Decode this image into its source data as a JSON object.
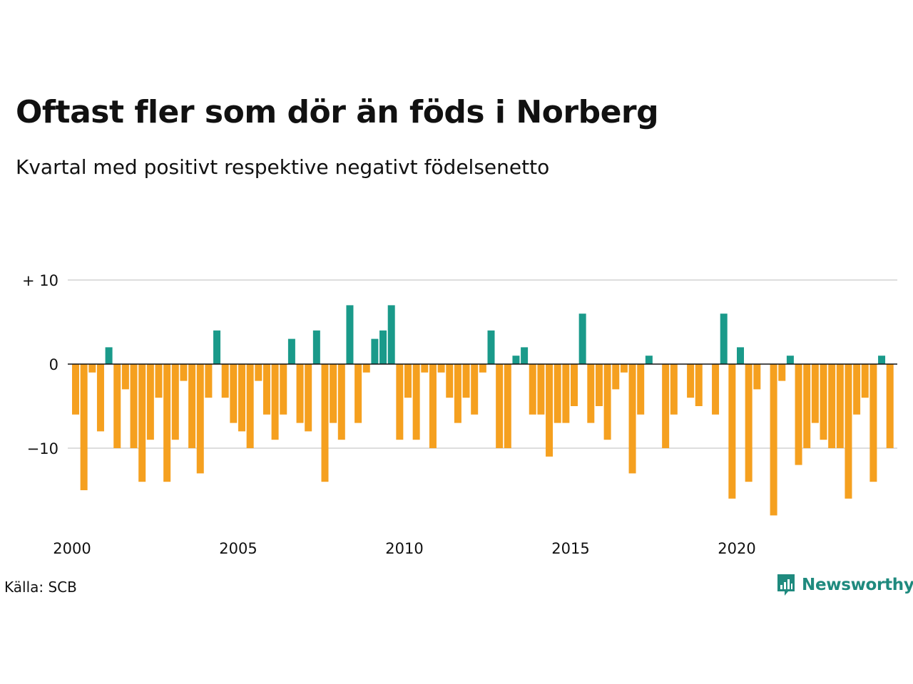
{
  "header": {
    "title": "Oftast fler som dör än föds i Norberg",
    "subtitle": "Kvartal med positivt respektive negativt födelsenetto"
  },
  "footer": {
    "source": "Källa: SCB",
    "brand": "Newsworthy"
  },
  "colors": {
    "positive": "#1a9a8a",
    "negative": "#f5a01f",
    "grid": "#dddddd",
    "zero_line": "#111111",
    "brand": "#1f8a7e"
  },
  "icons": {
    "brand_logo": "newsworthy-logo-icon"
  },
  "chart_data": {
    "type": "bar",
    "title": "Oftast fler som dör än föds i Norberg",
    "subtitle": "Kvartal med positivt respektive negativt födelsenetto",
    "x_start": "2000-Q1",
    "x_ticks": [
      "2000",
      "2005",
      "2010",
      "2015",
      "2020"
    ],
    "y_ticks": [
      {
        "value": 10,
        "label": "+ 10"
      },
      {
        "value": 0,
        "label": "0"
      },
      {
        "value": -10,
        "label": "−10"
      }
    ],
    "ylim": [
      -18,
      10
    ],
    "grid": true,
    "values": [
      -6,
      -15,
      -1,
      -8,
      2,
      -10,
      -3,
      -10,
      -14,
      -9,
      -4,
      -14,
      -9,
      -2,
      -10,
      -13,
      -4,
      4,
      -4,
      -7,
      -8,
      -10,
      -2,
      -6,
      -9,
      -6,
      3,
      -7,
      -8,
      4,
      -14,
      -7,
      -9,
      7,
      -7,
      -1,
      3,
      4,
      7,
      -9,
      -4,
      -9,
      -1,
      -10,
      -1,
      -4,
      -7,
      -4,
      -6,
      -1,
      4,
      -10,
      -10,
      1,
      2,
      -6,
      -6,
      -11,
      -7,
      -7,
      -5,
      6,
      -7,
      -5,
      -9,
      -3,
      -1,
      -13,
      -6,
      1,
      0,
      -10,
      -6,
      0,
      -4,
      -5,
      0,
      -6,
      6,
      -16,
      2,
      -14,
      -3,
      0,
      -18,
      -2,
      1,
      -12,
      -10,
      -7,
      -9,
      -10,
      -10,
      -16,
      -6,
      -4,
      -14,
      1,
      -10
    ]
  }
}
